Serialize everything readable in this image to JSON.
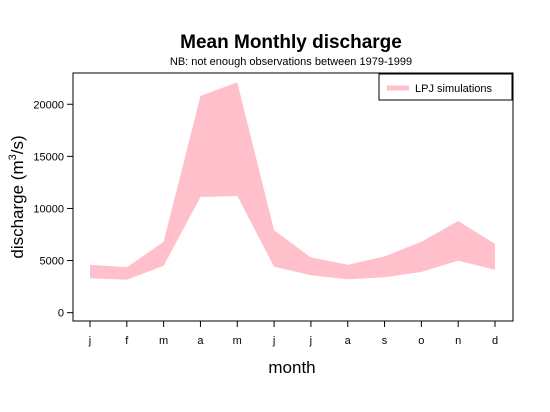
{
  "chart_data": {
    "type": "area",
    "title": "Mean Monthly discharge",
    "subtitle": "NB: not enough observations between 1979-1999",
    "xlabel": "month",
    "ylabel_base": "discharge (m",
    "ylabel_sup": "3",
    "ylabel_tail": "/s)",
    "categories": [
      "j",
      "f",
      "m",
      "a",
      "m",
      "j",
      "j",
      "a",
      "s",
      "o",
      "n",
      "d"
    ],
    "yticks": [
      0,
      5000,
      10000,
      15000,
      20000
    ],
    "ylim": [
      -800,
      23000
    ],
    "grid": false,
    "legend_position": "top-right",
    "series": [
      {
        "name": "LPJ simulations",
        "color": "#ffc0cb",
        "lower": [
          3300,
          3150,
          4500,
          11100,
          11200,
          4400,
          3600,
          3200,
          3400,
          3900,
          5000,
          4100
        ],
        "upper": [
          4600,
          4350,
          6800,
          20800,
          22100,
          7900,
          5300,
          4600,
          5400,
          6800,
          8800,
          6600
        ]
      }
    ]
  }
}
